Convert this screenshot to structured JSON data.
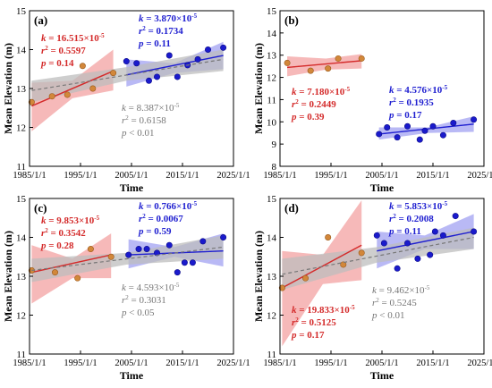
{
  "figure": {
    "shared": {
      "ylabel": "Mean Elevation (m)",
      "xlabel": "Time",
      "xticks": [
        "1985/1/1",
        "1995/1/1",
        "2005/1/1",
        "2015/1/1",
        "2025/1/1"
      ],
      "yticks": [
        "11",
        "12",
        "13",
        "14",
        "15"
      ],
      "yticks_b": [
        "8",
        "9",
        "10",
        "11",
        "12",
        "13",
        "14",
        "15"
      ],
      "colors": {
        "early": "#d42b2b",
        "late": "#1f1fd0",
        "all": "#777777",
        "early_fill": "#f08a8a",
        "late_fill": "#8b8bef",
        "all_fill": "#bdbdbd",
        "early_point": "#d2873a",
        "late_point": "#1a1acc"
      }
    }
  },
  "chart_data": [
    {
      "panel": "(a)",
      "type": "scatter",
      "xlim": [
        "1985/1/1",
        "2025/1/1"
      ],
      "ylim": [
        11,
        15
      ],
      "ylabel": "Mean Elevation (m)",
      "xlabel": "Time",
      "series": [
        {
          "points": [
            [
              "1985/6/1",
              12.65
            ],
            [
              "1989/6/1",
              12.8
            ],
            [
              "1992/6/1",
              12.84
            ],
            [
              "1995/6/1",
              13.58
            ],
            [
              "1997/6/1",
              13.0
            ],
            [
              "2001/6/1",
              13.4
            ]
          ],
          "fit": [
            [
              "1985/6/1",
              12.55
            ],
            [
              "2001/6/1",
              13.45
            ]
          ],
          "band": [
            [
              "1985/6/1",
              11.9,
              13.15
            ],
            [
              "1993/6/1",
              12.75,
              13.2
            ],
            [
              "2001/6/1",
              12.95,
              14.0
            ]
          ]
        },
        {
          "points": [
            [
              "2004/1/1",
              13.7
            ],
            [
              "2006/1/1",
              13.65
            ],
            [
              "2008/6/1",
              13.2
            ],
            [
              "2010/1/1",
              13.3
            ],
            [
              "2012/6/1",
              13.85
            ],
            [
              "2014/1/1",
              13.3
            ],
            [
              "2016/1/1",
              13.6
            ],
            [
              "2018/1/1",
              13.75
            ],
            [
              "2020/1/1",
              14.0
            ],
            [
              "2023/1/1",
              14.05
            ]
          ],
          "fit": [
            [
              "2004/1/1",
              13.35
            ],
            [
              "2023/1/1",
              13.85
            ]
          ],
          "band": [
            [
              "2004/1/1",
              13.05,
              13.75
            ],
            [
              "2013/6/1",
              13.4,
              13.65
            ],
            [
              "2023/1/1",
              13.5,
              14.2
            ]
          ]
        },
        {
          "fit": [
            [
              "1985/6/1",
              12.95
            ],
            [
              "2023/1/1",
              13.75
            ]
          ],
          "band": [
            [
              "1985/6/1",
              12.65,
              13.2
            ],
            [
              "2004/1/1",
              13.2,
              13.55
            ],
            [
              "2023/1/1",
              13.45,
              14.0
            ]
          ]
        }
      ],
      "annotations": [
        {
          "k_label": "k",
          "k_value": " = 16.515×10",
          "exp": "-5",
          "r_label": "r",
          "r_sup": "2",
          "r_value": " = 0.5597",
          "p_label": "p",
          "p_value": " = 0.14"
        },
        {
          "k_label": "k",
          "k_value": " = 3.870×10",
          "exp": "-5",
          "r_label": "r",
          "r_sup": "2",
          "r_value": " = 0.1734",
          "p_label": "p",
          "p_value": " = 0.11"
        },
        {
          "k_label": "k",
          "k_value": " = 8.387×10",
          "exp": "-5",
          "r_label": "r",
          "r_sup": "2",
          "r_value": " = 0.6158",
          "p_label": "p",
          "p_value": " < 0.01"
        }
      ]
    },
    {
      "panel": "(b)",
      "type": "scatter",
      "xlim": [
        "1985/1/1",
        "2025/1/1"
      ],
      "ylim": [
        8,
        15
      ],
      "ylabel": "Mean Elevation (m)",
      "xlabel": "Time",
      "series": [
        {
          "points": [
            [
              "1986/6/1",
              12.65
            ],
            [
              "1991/1/1",
              12.3
            ],
            [
              "1994/6/1",
              12.4
            ],
            [
              "1996/6/1",
              12.85
            ],
            [
              "2001/1/1",
              12.85
            ]
          ],
          "fit": [
            [
              "1986/6/1",
              12.45
            ],
            [
              "2001/1/1",
              12.75
            ]
          ],
          "band": [
            [
              "1986/6/1",
              12.05,
              12.95
            ],
            [
              "1994/1/1",
              12.35,
              12.85
            ],
            [
              "2001/1/1",
              12.4,
              13.05
            ]
          ]
        },
        {
          "points": [
            [
              "2004/6/1",
              9.45
            ],
            [
              "2006/1/1",
              9.75
            ],
            [
              "2008/1/1",
              9.3
            ],
            [
              "2010/1/1",
              9.8
            ],
            [
              "2012/6/1",
              9.2
            ],
            [
              "2013/6/1",
              9.6
            ],
            [
              "2015/1/1",
              9.8
            ],
            [
              "2017/1/1",
              9.4
            ],
            [
              "2019/1/1",
              9.95
            ],
            [
              "2023/1/1",
              10.1
            ]
          ],
          "fit": [
            [
              "2004/6/1",
              9.45
            ],
            [
              "2023/1/1",
              9.9
            ]
          ],
          "band": [
            [
              "2004/6/1",
              9.2,
              9.75
            ],
            [
              "2014/1/1",
              9.5,
              9.75
            ],
            [
              "2023/1/1",
              9.55,
              10.25
            ]
          ]
        }
      ],
      "annotations": [
        {
          "k_label": "k",
          "k_value": " = 7.180×10",
          "exp": "-5",
          "r_label": "r",
          "r_sup": "2",
          "r_value": " = 0.2449",
          "p_label": "p",
          "p_value": " = 0.39"
        },
        {
          "k_label": "k",
          "k_value": " = 4.576×10",
          "exp": "-5",
          "r_label": "r",
          "r_sup": "2",
          "r_value": " = 0.1935",
          "p_label": "p",
          "p_value": " = 0.17"
        }
      ]
    },
    {
      "panel": "(c)",
      "type": "scatter",
      "xlim": [
        "1985/1/1",
        "2025/1/1"
      ],
      "ylim": [
        11,
        15
      ],
      "ylabel": "Mean Elevation (m)",
      "xlabel": "Time",
      "series": [
        {
          "points": [
            [
              "1985/6/1",
              13.15
            ],
            [
              "1990/1/1",
              13.1
            ],
            [
              "1994/6/1",
              12.95
            ],
            [
              "1997/1/1",
              13.7
            ],
            [
              "2001/1/1",
              13.5
            ]
          ],
          "fit": [
            [
              "1985/6/1",
              13.1
            ],
            [
              "2001/1/1",
              13.55
            ]
          ],
          "band": [
            [
              "1985/6/1",
              12.3,
              13.8
            ],
            [
              "1993/6/1",
              12.95,
              13.45
            ],
            [
              "2001/1/1",
              12.95,
              14.1
            ]
          ]
        },
        {
          "points": [
            [
              "2004/6/1",
              13.55
            ],
            [
              "2006/6/1",
              13.7
            ],
            [
              "2008/1/1",
              13.7
            ],
            [
              "2010/1/1",
              13.6
            ],
            [
              "2012/6/1",
              13.8
            ],
            [
              "2014/1/1",
              13.1
            ],
            [
              "2015/6/1",
              13.35
            ],
            [
              "2017/1/1",
              13.35
            ],
            [
              "2019/1/1",
              13.9
            ],
            [
              "2023/1/1",
              14.0
            ]
          ],
          "fit": [
            [
              "2004/6/1",
              13.55
            ],
            [
              "2023/1/1",
              13.65
            ]
          ],
          "band": [
            [
              "2004/6/1",
              13.2,
              13.95
            ],
            [
              "2013/6/1",
              13.5,
              13.75
            ],
            [
              "2023/1/1",
              13.25,
              14.1
            ]
          ]
        },
        {
          "fit": [
            [
              "1985/6/1",
              13.15
            ],
            [
              "2023/1/1",
              13.75
            ]
          ],
          "band": [
            [
              "1985/6/1",
              12.85,
              13.45
            ],
            [
              "2004/1/1",
              13.3,
              13.6
            ],
            [
              "2023/1/1",
              13.45,
              14.05
            ]
          ]
        }
      ],
      "annotations": [
        {
          "k_label": "k",
          "k_value": " = 9.853×10",
          "exp": "-5",
          "r_label": "r",
          "r_sup": "2",
          "r_value": " = 0.3542",
          "p_label": "p",
          "p_value": " = 0.28"
        },
        {
          "k_label": "k",
          "k_value": " = 0.766×10",
          "exp": "-5",
          "r_label": "r",
          "r_sup": "2",
          "r_value": " = 0.0067",
          "p_label": "p",
          "p_value": " = 0.59"
        },
        {
          "k_label": "k",
          "k_value": " = 4.593×10",
          "exp": "-5",
          "r_label": "r",
          "r_sup": "2",
          "r_value": " = 0.3031",
          "p_label": "p",
          "p_value": " < 0.05"
        }
      ]
    },
    {
      "panel": "(d)",
      "type": "scatter",
      "xlim": [
        "1985/1/1",
        "2025/1/1"
      ],
      "ylim": [
        11,
        15
      ],
      "ylabel": "Mean Elevation (m)",
      "xlabel": "Time",
      "series": [
        {
          "points": [
            [
              "1985/6/1",
              12.7
            ],
            [
              "1990/1/1",
              12.95
            ],
            [
              "1994/6/1",
              14.0
            ],
            [
              "1997/6/1",
              13.3
            ],
            [
              "2001/1/1",
              13.6
            ]
          ],
          "fit": [
            [
              "1985/6/1",
              12.7
            ],
            [
              "2001/1/1",
              13.8
            ]
          ],
          "band": [
            [
              "1985/6/1",
              11.2,
              13.65
            ],
            [
              "1993/6/1",
              12.8,
              13.55
            ],
            [
              "2001/1/1",
              12.9,
              14.95
            ]
          ]
        },
        {
          "points": [
            [
              "2004/1/1",
              14.05
            ],
            [
              "2005/6/1",
              13.85
            ],
            [
              "2008/1/1",
              13.2
            ],
            [
              "2010/1/1",
              13.85
            ],
            [
              "2012/1/1",
              13.45
            ],
            [
              "2014/6/1",
              13.55
            ],
            [
              "2015/6/1",
              14.15
            ],
            [
              "2017/1/1",
              14.05
            ],
            [
              "2019/6/1",
              14.55
            ],
            [
              "2023/1/1",
              14.15
            ]
          ],
          "fit": [
            [
              "2004/1/1",
              13.65
            ],
            [
              "2023/1/1",
              14.15
            ]
          ],
          "band": [
            [
              "2004/1/1",
              13.2,
              14.15
            ],
            [
              "2013/6/1",
              13.7,
              14.05
            ],
            [
              "2023/1/1",
              13.7,
              14.6
            ]
          ]
        },
        {
          "fit": [
            [
              "1985/6/1",
              13.05
            ],
            [
              "2023/1/1",
              14.0
            ]
          ],
          "band": [
            [
              "1985/6/1",
              12.65,
              13.45
            ],
            [
              "2004/1/1",
              13.35,
              13.75
            ],
            [
              "2023/1/1",
              13.7,
              14.25
            ]
          ]
        }
      ],
      "annotations": [
        {
          "k_label": "k",
          "k_value": " = 19.833×10",
          "exp": "-5",
          "r_label": "r",
          "r_sup": "2",
          "r_value": " = 0.5125",
          "p_label": "p",
          "p_value": " = 0.17"
        },
        {
          "k_label": "k",
          "k_value": " = 5.853×10",
          "exp": "-5",
          "r_label": "r",
          "r_sup": "2",
          "r_value": " = 0.2008",
          "p_label": "p",
          "p_value": " = 0.11"
        },
        {
          "k_label": "k",
          "k_value": " = 9.462×10",
          "exp": "-5",
          "r_label": "r",
          "r_sup": "2",
          "r_value": " = 0.5245",
          "p_label": "p",
          "p_value": " < 0.01"
        }
      ]
    }
  ]
}
